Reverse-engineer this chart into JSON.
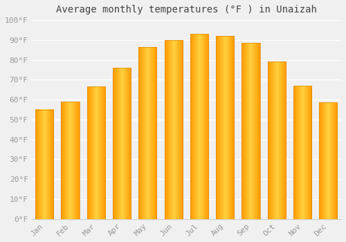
{
  "title": "Average monthly temperatures (°F ) in Unaizah",
  "months": [
    "Jan",
    "Feb",
    "Mar",
    "Apr",
    "May",
    "Jun",
    "Jul",
    "Aug",
    "Sep",
    "Oct",
    "Nov",
    "Dec"
  ],
  "values": [
    55,
    59,
    66.5,
    76,
    86.5,
    90,
    93,
    92,
    88.5,
    79,
    67,
    58.5
  ],
  "bar_color_center": "#FFD060",
  "bar_color_edge": "#FFA500",
  "bar_edge_color": "#E08800",
  "ylim": [
    0,
    100
  ],
  "yticks": [
    0,
    10,
    20,
    30,
    40,
    50,
    60,
    70,
    80,
    90,
    100
  ],
  "ytick_labels": [
    "0°F",
    "10°F",
    "20°F",
    "30°F",
    "40°F",
    "50°F",
    "60°F",
    "70°F",
    "80°F",
    "90°F",
    "100°F"
  ],
  "background_color": "#f0f0f0",
  "grid_color": "#ffffff",
  "title_fontsize": 10,
  "tick_fontsize": 8,
  "tick_color": "#999999",
  "title_color": "#444444"
}
